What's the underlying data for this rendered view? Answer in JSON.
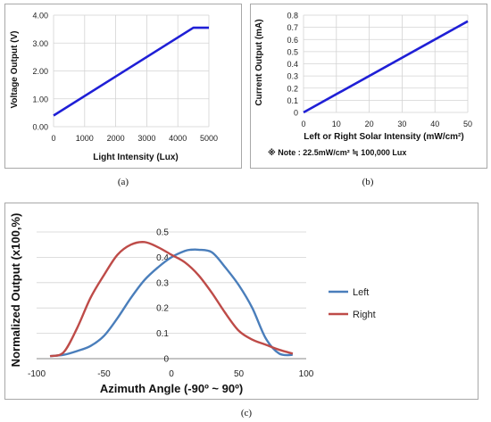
{
  "captions": {
    "a": "(a)",
    "b": "(b)",
    "c": "(c)"
  },
  "chart_data": [
    {
      "id": "a",
      "type": "line",
      "xlabel": "Light Intensity (Lux)",
      "ylabel": "Voltage Output (V)",
      "xlim": [
        0,
        5000
      ],
      "ylim": [
        0,
        4
      ],
      "xticks": [
        0,
        1000,
        2000,
        3000,
        4000,
        5000
      ],
      "xtick_labels": [
        "0",
        "1000",
        "2000",
        "3000",
        "4000",
        "5000"
      ],
      "yticks": [
        0,
        1,
        2,
        3,
        4
      ],
      "ytick_labels": [
        "0.00",
        "1.00",
        "2.00",
        "3.00",
        "4.00"
      ],
      "grid": true,
      "series": [
        {
          "color": "#1f1fd6",
          "x": [
            0,
            4500,
            5000
          ],
          "y": [
            0.4,
            3.55,
            3.55
          ]
        }
      ]
    },
    {
      "id": "b",
      "type": "line",
      "xlabel": "Left or Right Solar Intensity (mW/cm²)",
      "ylabel": "Current Output (mA)",
      "note": "※ Note : 22.5mW/cm² ≒ 100,000 Lux",
      "xlim": [
        0,
        50
      ],
      "ylim": [
        0,
        0.8
      ],
      "xticks": [
        0,
        10,
        20,
        30,
        40,
        50
      ],
      "xtick_labels": [
        "0",
        "10",
        "20",
        "30",
        "40",
        "50"
      ],
      "yticks": [
        0,
        0.1,
        0.2,
        0.3,
        0.4,
        0.5,
        0.6,
        0.7,
        0.8
      ],
      "ytick_labels": [
        "0",
        "0.1",
        "0.2",
        "0.3",
        "0.4",
        "0.5",
        "0.6",
        "0.7",
        "0.8"
      ],
      "grid": true,
      "series": [
        {
          "color": "#1f1fd6",
          "x": [
            0,
            50
          ],
          "y": [
            0,
            0.75
          ]
        }
      ]
    },
    {
      "id": "c",
      "type": "line",
      "xlabel": "Azimuth Angle (-90º ~ 90º)",
      "ylabel": "Normalized Output (x100,%)",
      "xlim": [
        -100,
        100
      ],
      "ylim": [
        0,
        0.5
      ],
      "xticks": [
        -100,
        -50,
        0,
        50,
        100
      ],
      "xtick_labels": [
        "-100",
        "-50",
        "0",
        "50",
        "100"
      ],
      "yticks": [
        0,
        0.1,
        0.2,
        0.3,
        0.4,
        0.5
      ],
      "ytick_labels": [
        "0",
        "0.1",
        "0.2",
        "0.3",
        "0.4",
        "0.5"
      ],
      "grid": true,
      "legend": "right",
      "series": [
        {
          "name": "Left",
          "color": "#4a7ebb",
          "x": [
            -90,
            -80,
            -70,
            -60,
            -50,
            -40,
            -30,
            -20,
            -10,
            0,
            10,
            15,
            20,
            30,
            40,
            50,
            60,
            70,
            80,
            90
          ],
          "y": [
            0.01,
            0.015,
            0.03,
            0.05,
            0.09,
            0.16,
            0.24,
            0.31,
            0.36,
            0.4,
            0.425,
            0.43,
            0.43,
            0.42,
            0.36,
            0.29,
            0.2,
            0.08,
            0.02,
            0.015
          ]
        },
        {
          "name": "Right",
          "color": "#be4b48",
          "x": [
            -90,
            -80,
            -70,
            -60,
            -50,
            -40,
            -30,
            -20,
            -10,
            0,
            10,
            20,
            30,
            40,
            50,
            60,
            70,
            80,
            90
          ],
          "y": [
            0.01,
            0.025,
            0.12,
            0.24,
            0.33,
            0.41,
            0.45,
            0.46,
            0.44,
            0.41,
            0.38,
            0.33,
            0.26,
            0.18,
            0.11,
            0.075,
            0.055,
            0.035,
            0.02
          ]
        }
      ]
    }
  ]
}
